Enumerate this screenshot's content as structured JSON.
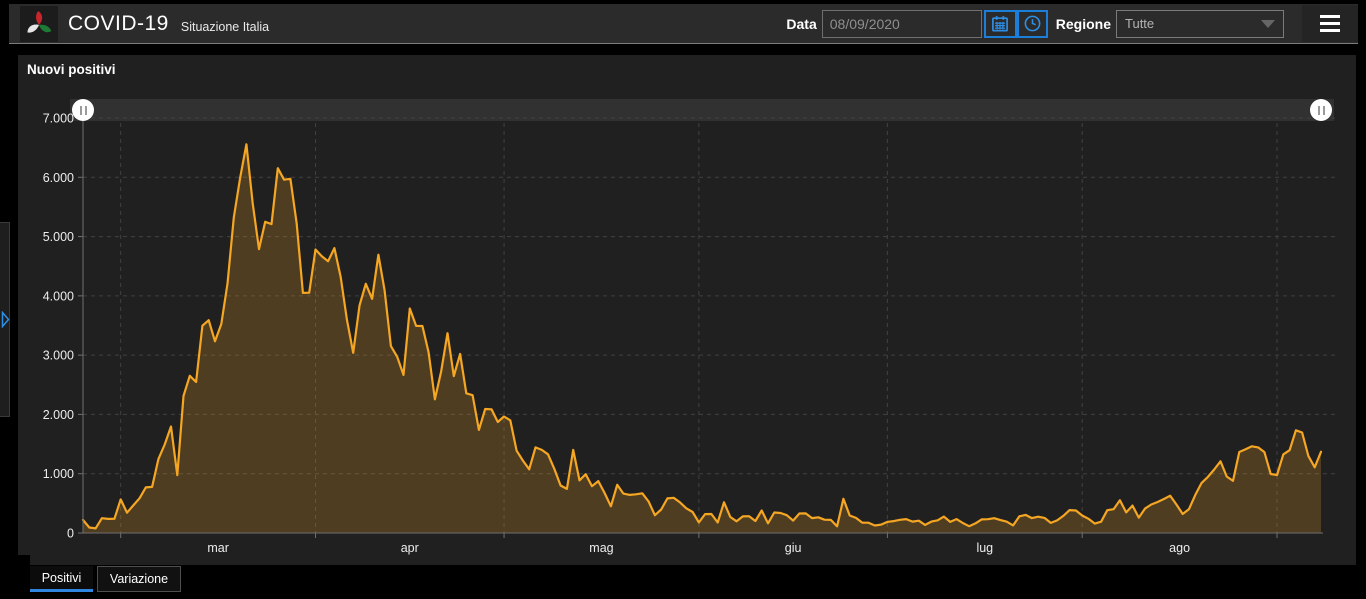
{
  "header": {
    "title": "COVID-19",
    "subtitle": "Situazione Italia",
    "date_label": "Data",
    "date_value": "08/09/2020",
    "region_label": "Regione",
    "region_value": "Tutte"
  },
  "panel": {
    "title": "Nuovi positivi"
  },
  "tabs": [
    {
      "label": "Positivi",
      "active": true
    },
    {
      "label": "Variazione",
      "active": false
    }
  ],
  "colors": {
    "accent_blue": "#2e86e0",
    "icon_blue": "#2e8fe8",
    "line_orange": "#f5a623",
    "area_fill": "rgba(245,166,35,0.22)",
    "header_bg": "#2b2b2b",
    "panel_bg": "#202020",
    "grid": "#414141",
    "axis": "#707070",
    "tick_text": "#ededed"
  },
  "chart_data": {
    "type": "area",
    "title": "Nuovi positivi",
    "x_start_date": "2020-02-24",
    "x_end_date": "2020-09-08",
    "x_tick_labels": [
      "mar",
      "apr",
      "mag",
      "giu",
      "lug",
      "ago"
    ],
    "month_start_indices": [
      6,
      37,
      67,
      98,
      128,
      159,
      190
    ],
    "month_label_positions": [
      21.5,
      52,
      82.5,
      113,
      143.5,
      174.5
    ],
    "y_tick_labels": [
      "0",
      "1.000",
      "2.000",
      "3.000",
      "4.000",
      "5.000",
      "6.000",
      "7.000"
    ],
    "ylim": [
      0,
      7000
    ],
    "grid": true,
    "legend": false,
    "values": [
      221,
      93,
      78,
      250,
      238,
      240,
      566,
      342,
      466,
      587,
      769,
      778,
      1247,
      1492,
      1797,
      977,
      2313,
      2651,
      2547,
      3497,
      3590,
      3233,
      3526,
      4207,
      5322,
      5986,
      6557,
      5560,
      4789,
      5249,
      5210,
      6153,
      5959,
      5974,
      5217,
      4050,
      4053,
      4782,
      4668,
      4585,
      4805,
      4316,
      3599,
      3039,
      3836,
      4204,
      3951,
      4694,
      4092,
      3153,
      2972,
      2667,
      3786,
      3493,
      3491,
      3047,
      2256,
      2729,
      3370,
      2646,
      3021,
      2357,
      2324,
      1739,
      2091,
      2086,
      1872,
      1965,
      1900,
      1389,
      1221,
      1075,
      1444,
      1401,
      1327,
      1083,
      802,
      744,
      1402,
      888,
      992,
      789,
      875,
      675,
      451,
      813,
      665,
      642,
      652,
      669,
      531,
      300,
      397,
      584,
      593,
      516,
      416,
      355,
      178,
      318,
      321,
      177,
      518,
      270,
      197,
      280,
      283,
      202,
      379,
      163,
      346,
      338,
      301,
      210,
      329,
      331,
      251,
      264,
      224,
      221,
      113,
      577,
      296,
      255,
      175,
      174,
      126,
      142,
      187,
      201,
      223,
      235,
      192,
      208,
      137,
      193,
      214,
      276,
      188,
      234,
      169,
      114,
      162,
      230,
      233,
      249,
      218,
      190,
      128,
      282,
      306,
      252,
      275,
      255,
      170,
      212,
      289,
      386,
      379,
      295,
      239,
      159,
      190,
      384,
      402,
      552,
      347,
      463,
      259,
      412,
      481,
      523,
      574,
      629,
      479,
      320,
      403,
      642,
      845,
      947,
      1071,
      1210,
      953,
      878,
      1367,
      1411,
      1462,
      1444,
      1365,
      996,
      978,
      1326,
      1397,
      1733,
      1695,
      1297,
      1108,
      1370
    ]
  }
}
